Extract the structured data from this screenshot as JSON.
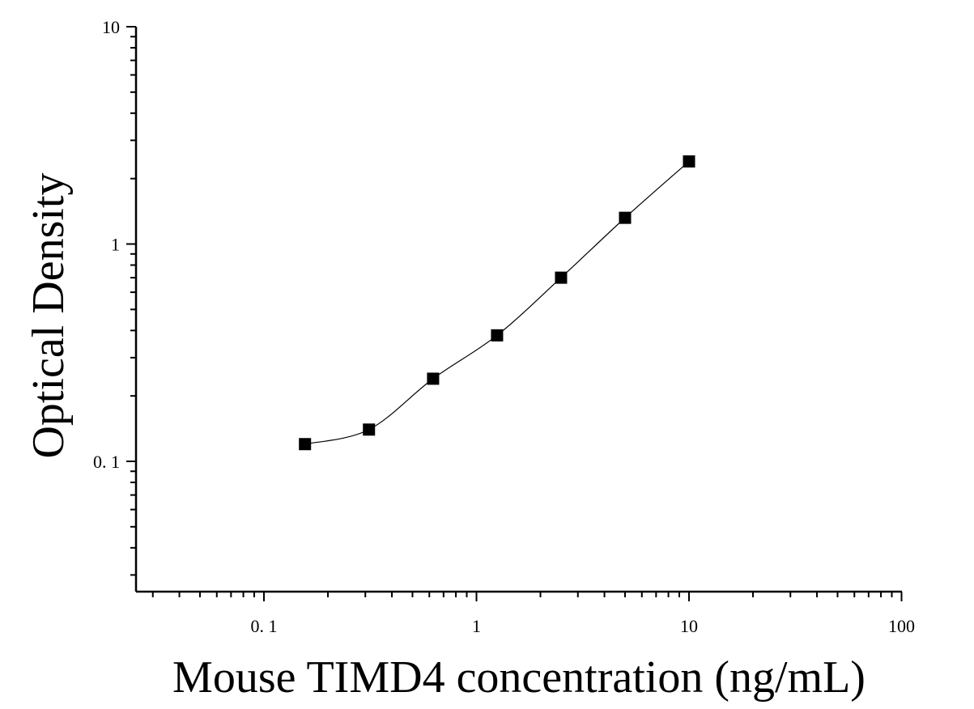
{
  "chart_data": {
    "type": "scatter",
    "title": "",
    "xlabel": "Mouse TIMD4 concentration (ng/mL)",
    "ylabel": "Optical Density",
    "xscale": "log",
    "yscale": "log",
    "xlim": [
      0.025,
      100
    ],
    "ylim": [
      0.025,
      10
    ],
    "x_ticks": [
      {
        "value": 0.1,
        "label": "0. 1"
      },
      {
        "value": 1,
        "label": "1"
      },
      {
        "value": 10,
        "label": "10"
      },
      {
        "value": 100,
        "label": "100"
      }
    ],
    "y_ticks": [
      {
        "value": 0.1,
        "label": "0. 1"
      },
      {
        "value": 1,
        "label": "1"
      },
      {
        "value": 10,
        "label": "10"
      }
    ],
    "grid": false,
    "legend": "none",
    "series": [
      {
        "x": [
          0.156,
          0.312,
          0.625,
          1.25,
          2.5,
          5,
          10
        ],
        "y": [
          0.12,
          0.14,
          0.24,
          0.38,
          0.7,
          1.32,
          2.4
        ],
        "marker": "square",
        "fit_curve": true,
        "color": "#000000"
      }
    ]
  }
}
